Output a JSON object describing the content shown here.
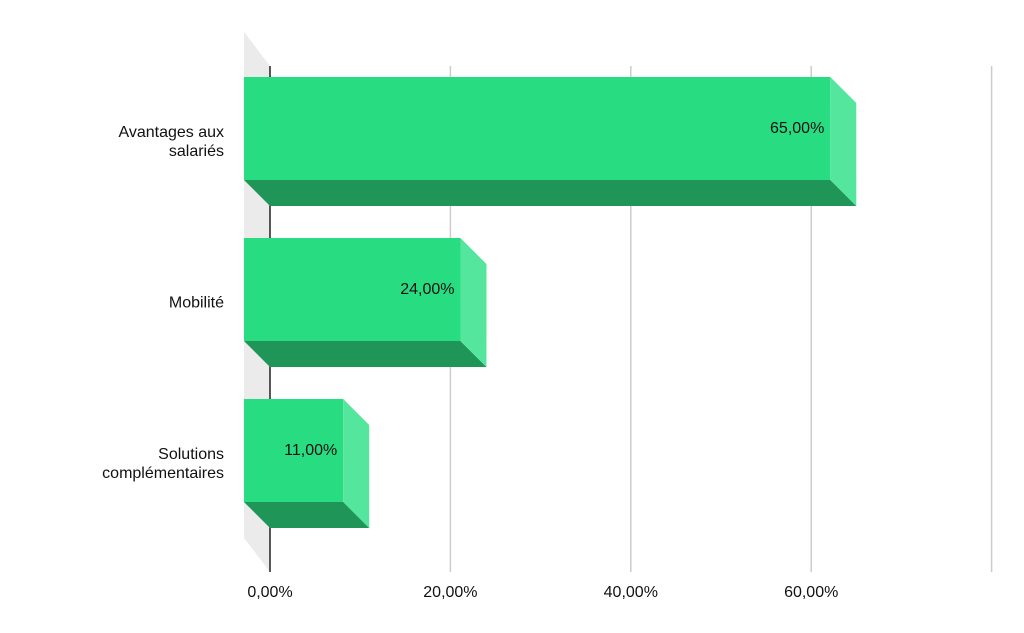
{
  "chart_data": {
    "type": "bar",
    "orientation": "horizontal",
    "style": "3d",
    "categories": [
      [
        "Avantages aux",
        "salariés"
      ],
      [
        "Mobilité"
      ],
      [
        "Solutions",
        "complémentaires"
      ]
    ],
    "values": [
      65,
      24,
      11
    ],
    "value_labels": [
      "65,00%",
      "24,00%",
      "11,00%"
    ],
    "xlim": [
      0,
      80
    ],
    "x_ticks": [
      0,
      20,
      40,
      60,
      80
    ],
    "x_tick_labels": [
      "0,00%",
      "20,00%",
      "40,00%",
      "60,00%",
      ""
    ],
    "grid": true,
    "legend": "none",
    "colors": {
      "bar_front": "#28dc82",
      "bar_bottom": "#1f9557",
      "bar_side": "#55e69e",
      "grid": "#cccccc",
      "axis": "#222222",
      "floor": "#ebebeb"
    }
  }
}
